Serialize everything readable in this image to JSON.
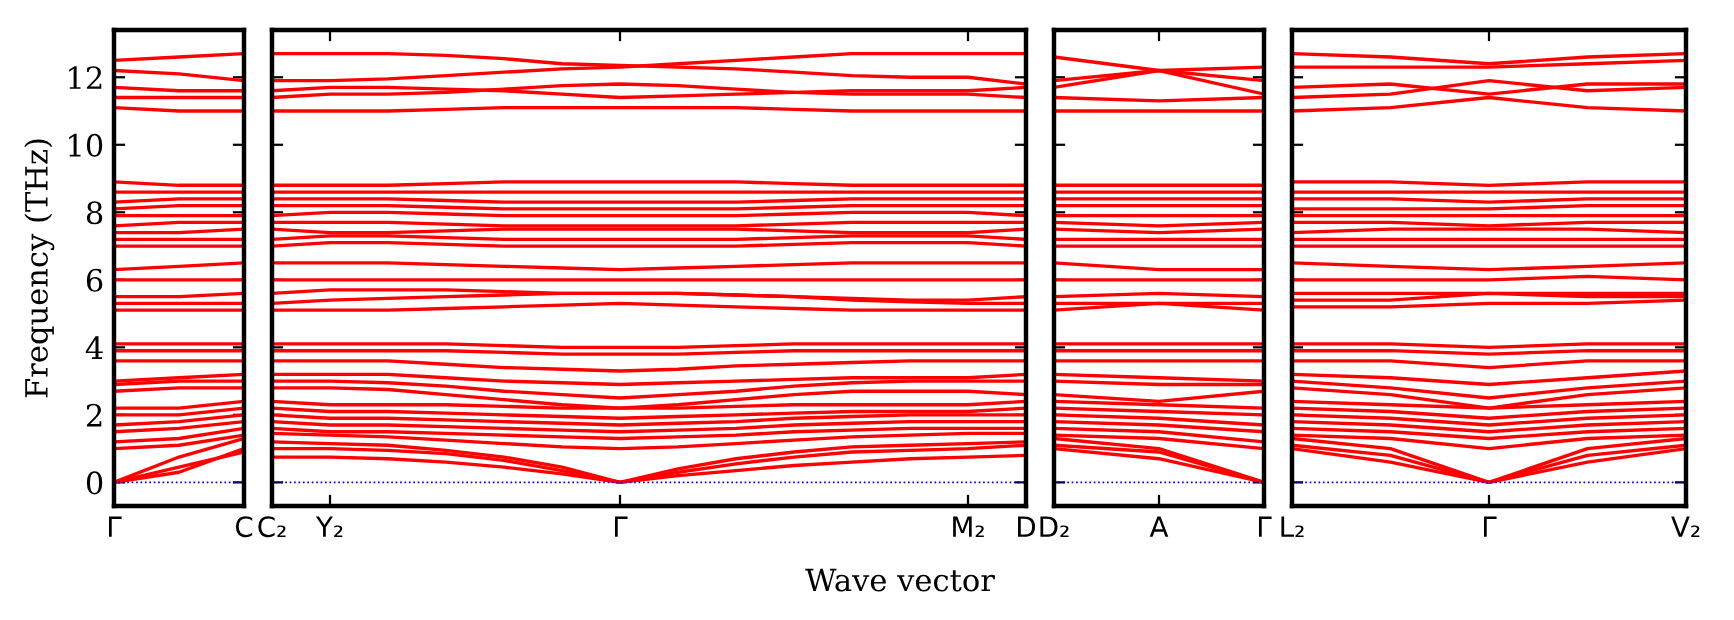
{
  "chart_data": [
    {
      "type": "line",
      "ylabel": "Frequency (THz)",
      "color": "#ff0000",
      "line_style": "solid",
      "categories": [
        "Γ",
        null,
        "C"
      ],
      "ylim": [
        -0.7,
        13.4
      ],
      "yticks": [
        0,
        2,
        4,
        6,
        8,
        10,
        12
      ],
      "ref_lines": [
        {
          "axis": "y",
          "value": 0,
          "color": "#0000ff",
          "line_style": "dotted"
        }
      ],
      "series": [
        {
          "values": [
            0,
            0.45,
            0.9
          ]
        },
        {
          "values": [
            0,
            0.75,
            1.3
          ]
        },
        {
          "values": [
            0,
            0.3,
            1.0
          ]
        },
        {
          "values": [
            1.0,
            1.1,
            1.4
          ]
        },
        {
          "values": [
            1.2,
            1.3,
            1.6
          ]
        },
        {
          "values": [
            1.5,
            1.6,
            1.8
          ]
        },
        {
          "values": [
            1.7,
            1.8,
            2.0
          ]
        },
        {
          "values": [
            2.0,
            2.0,
            2.2
          ]
        },
        {
          "values": [
            2.2,
            2.2,
            2.4
          ]
        },
        {
          "values": [
            2.7,
            2.8,
            2.8
          ]
        },
        {
          "values": [
            2.9,
            3.0,
            3.0
          ]
        },
        {
          "values": [
            3.0,
            3.1,
            3.2
          ]
        },
        {
          "values": [
            3.6,
            3.6,
            3.6
          ]
        },
        {
          "values": [
            3.9,
            3.9,
            3.9
          ]
        },
        {
          "values": [
            4.1,
            4.1,
            4.1
          ]
        },
        {
          "values": [
            5.1,
            5.1,
            5.1
          ]
        },
        {
          "values": [
            5.3,
            5.3,
            5.3
          ]
        },
        {
          "values": [
            5.5,
            5.5,
            5.6
          ]
        },
        {
          "values": [
            6.0,
            6.0,
            6.0
          ]
        },
        {
          "values": [
            6.3,
            6.4,
            6.5
          ]
        },
        {
          "values": [
            7.0,
            7.0,
            7.0
          ]
        },
        {
          "values": [
            7.2,
            7.2,
            7.2
          ]
        },
        {
          "values": [
            7.4,
            7.4,
            7.5
          ]
        },
        {
          "values": [
            7.6,
            7.7,
            7.7
          ]
        },
        {
          "values": [
            7.9,
            7.9,
            7.9
          ]
        },
        {
          "values": [
            8.1,
            8.2,
            8.2
          ]
        },
        {
          "values": [
            8.3,
            8.4,
            8.4
          ]
        },
        {
          "values": [
            8.6,
            8.6,
            8.6
          ]
        },
        {
          "values": [
            8.9,
            8.8,
            8.8
          ]
        },
        {
          "values": [
            11.1,
            11.0,
            11.0
          ]
        },
        {
          "values": [
            11.4,
            11.4,
            11.4
          ]
        },
        {
          "values": [
            11.7,
            11.6,
            11.6
          ]
        },
        {
          "values": [
            12.2,
            12.1,
            11.9
          ]
        },
        {
          "values": [
            12.5,
            12.6,
            12.7
          ]
        }
      ]
    },
    {
      "type": "line",
      "xlabel": "Wave vector",
      "tick_labels": "x",
      "color": "#ff0000",
      "line_style": "solid",
      "categories": [
        "C₂",
        "Y₂",
        null,
        null,
        null,
        null,
        "Γ",
        null,
        null,
        null,
        null,
        null,
        "M₂",
        "D"
      ],
      "ylim": [
        -0.7,
        13.4
      ],
      "yticks": [
        0,
        2,
        4,
        6,
        8,
        10,
        12
      ],
      "ref_lines": [
        {
          "axis": "y",
          "value": 0,
          "color": "#0000ff",
          "line_style": "dotted"
        }
      ],
      "series": [
        {
          "values": [
            0.75,
            0.75,
            0.7,
            0.6,
            0.45,
            0.25,
            0,
            0.2,
            0.35,
            0.5,
            0.6,
            0.7,
            0.75,
            0.8
          ]
        },
        {
          "values": [
            1.0,
            1.0,
            0.95,
            0.85,
            0.65,
            0.35,
            0,
            0.3,
            0.55,
            0.75,
            0.9,
            0.95,
            1.0,
            1.1
          ]
        },
        {
          "values": [
            1.2,
            1.15,
            1.1,
            0.95,
            0.75,
            0.45,
            0,
            0.4,
            0.7,
            0.9,
            1.05,
            1.1,
            1.15,
            1.2
          ]
        },
        {
          "values": [
            1.45,
            1.4,
            1.35,
            1.25,
            1.15,
            1.05,
            1.0,
            1.05,
            1.15,
            1.25,
            1.35,
            1.4,
            1.45,
            1.45
          ]
        },
        {
          "values": [
            1.6,
            1.5,
            1.5,
            1.45,
            1.4,
            1.35,
            1.3,
            1.35,
            1.4,
            1.5,
            1.55,
            1.6,
            1.6,
            1.6
          ]
        },
        {
          "values": [
            1.8,
            1.7,
            1.7,
            1.65,
            1.6,
            1.55,
            1.5,
            1.55,
            1.6,
            1.7,
            1.75,
            1.8,
            1.8,
            1.8
          ]
        },
        {
          "values": [
            2.0,
            1.9,
            1.9,
            1.85,
            1.8,
            1.75,
            1.7,
            1.75,
            1.8,
            1.9,
            1.95,
            2.0,
            2.0,
            2.0
          ]
        },
        {
          "values": [
            2.2,
            2.1,
            2.1,
            2.05,
            2.0,
            1.95,
            1.9,
            1.95,
            2.0,
            2.05,
            2.1,
            2.1,
            2.1,
            2.2
          ]
        },
        {
          "values": [
            2.4,
            2.3,
            2.3,
            2.3,
            2.25,
            2.2,
            2.2,
            2.2,
            2.25,
            2.3,
            2.3,
            2.3,
            2.3,
            2.4
          ]
        },
        {
          "values": [
            2.8,
            2.8,
            2.75,
            2.6,
            2.45,
            2.3,
            2.2,
            2.3,
            2.45,
            2.6,
            2.7,
            2.7,
            2.7,
            2.6
          ]
        },
        {
          "values": [
            3.0,
            3.0,
            2.95,
            2.85,
            2.7,
            2.6,
            2.5,
            2.6,
            2.7,
            2.85,
            2.95,
            3.0,
            3.0,
            3.0
          ]
        },
        {
          "values": [
            3.2,
            3.2,
            3.2,
            3.1,
            3.0,
            2.95,
            2.9,
            2.95,
            3.0,
            3.05,
            3.1,
            3.1,
            3.1,
            3.2
          ]
        },
        {
          "values": [
            3.6,
            3.6,
            3.6,
            3.5,
            3.4,
            3.35,
            3.3,
            3.35,
            3.45,
            3.5,
            3.55,
            3.6,
            3.6,
            3.6
          ]
        },
        {
          "values": [
            3.9,
            3.9,
            3.9,
            3.9,
            3.85,
            3.8,
            3.8,
            3.8,
            3.85,
            3.9,
            3.9,
            3.9,
            3.9,
            3.9
          ]
        },
        {
          "values": [
            4.1,
            4.1,
            4.1,
            4.1,
            4.05,
            4.0,
            4.0,
            4.0,
            4.05,
            4.1,
            4.1,
            4.1,
            4.1,
            4.1
          ]
        },
        {
          "values": [
            5.1,
            5.1,
            5.1,
            5.15,
            5.2,
            5.25,
            5.3,
            5.25,
            5.2,
            5.15,
            5.1,
            5.1,
            5.1,
            5.1
          ]
        },
        {
          "values": [
            5.3,
            5.4,
            5.45,
            5.5,
            5.55,
            5.6,
            5.6,
            5.6,
            5.55,
            5.5,
            5.4,
            5.35,
            5.3,
            5.3
          ]
        },
        {
          "values": [
            5.6,
            5.7,
            5.7,
            5.7,
            5.65,
            5.6,
            5.6,
            5.6,
            5.55,
            5.5,
            5.45,
            5.4,
            5.4,
            5.5
          ]
        },
        {
          "values": [
            6.0,
            6.0,
            6.0,
            6.0,
            6.0,
            6.0,
            6.0,
            6.0,
            6.0,
            6.0,
            6.0,
            6.0,
            6.0,
            6.0
          ]
        },
        {
          "values": [
            6.5,
            6.5,
            6.5,
            6.45,
            6.4,
            6.35,
            6.3,
            6.35,
            6.4,
            6.45,
            6.5,
            6.5,
            6.5,
            6.5
          ]
        },
        {
          "values": [
            7.0,
            7.1,
            7.1,
            7.05,
            7.0,
            7.0,
            7.0,
            7.0,
            7.0,
            7.05,
            7.1,
            7.1,
            7.1,
            7.0
          ]
        },
        {
          "values": [
            7.2,
            7.3,
            7.3,
            7.25,
            7.2,
            7.2,
            7.2,
            7.2,
            7.2,
            7.25,
            7.3,
            7.3,
            7.3,
            7.2
          ]
        },
        {
          "values": [
            7.5,
            7.4,
            7.4,
            7.45,
            7.5,
            7.5,
            7.5,
            7.5,
            7.5,
            7.45,
            7.4,
            7.4,
            7.4,
            7.5
          ]
        },
        {
          "values": [
            7.7,
            7.7,
            7.7,
            7.65,
            7.6,
            7.6,
            7.6,
            7.6,
            7.6,
            7.65,
            7.7,
            7.7,
            7.7,
            7.7
          ]
        },
        {
          "values": [
            7.9,
            8.0,
            8.0,
            7.95,
            7.9,
            7.9,
            7.9,
            7.9,
            7.9,
            7.95,
            8.0,
            8.0,
            8.0,
            7.9
          ]
        },
        {
          "values": [
            8.2,
            8.2,
            8.2,
            8.15,
            8.1,
            8.1,
            8.1,
            8.1,
            8.1,
            8.15,
            8.2,
            8.2,
            8.2,
            8.2
          ]
        },
        {
          "values": [
            8.4,
            8.4,
            8.4,
            8.35,
            8.3,
            8.3,
            8.3,
            8.3,
            8.3,
            8.35,
            8.4,
            8.4,
            8.4,
            8.4
          ]
        },
        {
          "values": [
            8.6,
            8.6,
            8.6,
            8.6,
            8.6,
            8.6,
            8.6,
            8.6,
            8.6,
            8.6,
            8.6,
            8.6,
            8.6,
            8.6
          ]
        },
        {
          "values": [
            8.8,
            8.8,
            8.8,
            8.85,
            8.9,
            8.9,
            8.9,
            8.9,
            8.9,
            8.85,
            8.8,
            8.8,
            8.8,
            8.8
          ]
        },
        {
          "values": [
            11.0,
            11.0,
            11.0,
            11.05,
            11.1,
            11.1,
            11.1,
            11.1,
            11.1,
            11.05,
            11.0,
            11.0,
            11.0,
            11.0
          ]
        },
        {
          "values": [
            11.4,
            11.5,
            11.5,
            11.55,
            11.65,
            11.75,
            11.8,
            11.75,
            11.65,
            11.55,
            11.5,
            11.5,
            11.5,
            11.4
          ]
        },
        {
          "values": [
            11.6,
            11.7,
            11.7,
            11.65,
            11.6,
            11.5,
            11.4,
            11.45,
            11.5,
            11.55,
            11.6,
            11.6,
            11.6,
            11.7
          ]
        },
        {
          "values": [
            11.9,
            11.9,
            11.95,
            12.05,
            12.15,
            12.25,
            12.3,
            12.4,
            12.5,
            12.6,
            12.7,
            12.7,
            12.7,
            12.7
          ]
        },
        {
          "values": [
            12.7,
            12.7,
            12.7,
            12.65,
            12.55,
            12.4,
            12.35,
            12.3,
            12.25,
            12.15,
            12.05,
            12.0,
            12.0,
            11.8
          ]
        }
      ]
    },
    {
      "type": "line",
      "tick_labels": "x",
      "color": "#ff0000",
      "line_style": "solid",
      "categories": [
        "D₂",
        "A",
        "Γ"
      ],
      "ylim": [
        -0.7,
        13.4
      ],
      "yticks": [
        0,
        2,
        4,
        6,
        8,
        10,
        12
      ],
      "ref_lines": [
        {
          "axis": "y",
          "value": 0,
          "color": "#0000ff",
          "line_style": "dotted"
        }
      ],
      "series": [
        {
          "values": [
            1.0,
            0.7,
            0
          ]
        },
        {
          "values": [
            1.1,
            0.9,
            0
          ]
        },
        {
          "values": [
            1.3,
            1.0,
            0
          ]
        },
        {
          "values": [
            1.4,
            1.3,
            1.0
          ]
        },
        {
          "values": [
            1.6,
            1.5,
            1.2
          ]
        },
        {
          "values": [
            1.8,
            1.7,
            1.5
          ]
        },
        {
          "values": [
            2.0,
            1.9,
            1.7
          ]
        },
        {
          "values": [
            2.2,
            2.1,
            2.0
          ]
        },
        {
          "values": [
            2.4,
            2.3,
            2.2
          ]
        },
        {
          "values": [
            2.6,
            2.4,
            2.7
          ]
        },
        {
          "values": [
            3.0,
            2.9,
            2.9
          ]
        },
        {
          "values": [
            3.2,
            3.1,
            3.0
          ]
        },
        {
          "values": [
            3.6,
            3.6,
            3.6
          ]
        },
        {
          "values": [
            3.9,
            3.9,
            3.9
          ]
        },
        {
          "values": [
            4.1,
            4.1,
            4.1
          ]
        },
        {
          "values": [
            5.1,
            5.3,
            5.1
          ]
        },
        {
          "values": [
            5.3,
            5.3,
            5.3
          ]
        },
        {
          "values": [
            5.5,
            5.6,
            5.5
          ]
        },
        {
          "values": [
            6.0,
            6.0,
            6.0
          ]
        },
        {
          "values": [
            6.5,
            6.3,
            6.3
          ]
        },
        {
          "values": [
            7.0,
            7.0,
            7.0
          ]
        },
        {
          "values": [
            7.2,
            7.2,
            7.2
          ]
        },
        {
          "values": [
            7.5,
            7.4,
            7.5
          ]
        },
        {
          "values": [
            7.7,
            7.6,
            7.7
          ]
        },
        {
          "values": [
            7.9,
            7.9,
            7.9
          ]
        },
        {
          "values": [
            8.2,
            8.2,
            8.2
          ]
        },
        {
          "values": [
            8.4,
            8.4,
            8.4
          ]
        },
        {
          "values": [
            8.6,
            8.6,
            8.6
          ]
        },
        {
          "values": [
            8.8,
            8.8,
            8.8
          ]
        },
        {
          "values": [
            11.0,
            11.0,
            11.0
          ]
        },
        {
          "values": [
            11.4,
            11.3,
            11.4
          ]
        },
        {
          "values": [
            11.7,
            12.2,
            11.5
          ]
        },
        {
          "values": [
            11.9,
            12.2,
            12.3
          ]
        },
        {
          "values": [
            12.6,
            12.2,
            11.9
          ]
        }
      ]
    },
    {
      "type": "line",
      "tick_labels": "x",
      "color": "#ff0000",
      "line_style": "solid",
      "categories": [
        "L₂",
        null,
        "Γ",
        null,
        "V₂"
      ],
      "ylim": [
        -0.7,
        13.4
      ],
      "yticks": [
        0,
        2,
        4,
        6,
        8,
        10,
        12
      ],
      "ref_lines": [
        {
          "axis": "y",
          "value": 0,
          "color": "#0000ff",
          "line_style": "dotted"
        }
      ],
      "series": [
        {
          "values": [
            1.0,
            0.6,
            0,
            0.6,
            1.0
          ]
        },
        {
          "values": [
            1.1,
            0.8,
            0,
            0.8,
            1.1
          ]
        },
        {
          "values": [
            1.3,
            1.0,
            0,
            1.0,
            1.3
          ]
        },
        {
          "values": [
            1.4,
            1.3,
            1.0,
            1.3,
            1.4
          ]
        },
        {
          "values": [
            1.6,
            1.5,
            1.3,
            1.5,
            1.6
          ]
        },
        {
          "values": [
            1.8,
            1.7,
            1.5,
            1.7,
            1.8
          ]
        },
        {
          "values": [
            2.0,
            1.9,
            1.7,
            1.9,
            2.0
          ]
        },
        {
          "values": [
            2.2,
            2.1,
            1.9,
            2.1,
            2.2
          ]
        },
        {
          "values": [
            2.4,
            2.3,
            2.2,
            2.3,
            2.4
          ]
        },
        {
          "values": [
            2.8,
            2.6,
            2.2,
            2.6,
            2.8
          ]
        },
        {
          "values": [
            3.0,
            2.8,
            2.5,
            2.8,
            3.0
          ]
        },
        {
          "values": [
            3.2,
            3.1,
            2.9,
            3.1,
            3.3
          ]
        },
        {
          "values": [
            3.6,
            3.6,
            3.4,
            3.6,
            3.6
          ]
        },
        {
          "values": [
            3.9,
            3.9,
            3.8,
            3.9,
            3.9
          ]
        },
        {
          "values": [
            4.1,
            4.1,
            4.0,
            4.1,
            4.1
          ]
        },
        {
          "values": [
            5.2,
            5.2,
            5.3,
            5.3,
            5.4
          ]
        },
        {
          "values": [
            5.4,
            5.4,
            5.6,
            5.5,
            5.5
          ]
        },
        {
          "values": [
            5.6,
            5.6,
            5.6,
            5.6,
            5.6
          ]
        },
        {
          "values": [
            6.0,
            6.0,
            6.0,
            6.1,
            6.0
          ]
        },
        {
          "values": [
            6.5,
            6.4,
            6.3,
            6.4,
            6.5
          ]
        },
        {
          "values": [
            7.0,
            7.0,
            7.0,
            7.0,
            7.0
          ]
        },
        {
          "values": [
            7.2,
            7.2,
            7.2,
            7.2,
            7.2
          ]
        },
        {
          "values": [
            7.4,
            7.5,
            7.5,
            7.5,
            7.4
          ]
        },
        {
          "values": [
            7.7,
            7.7,
            7.6,
            7.7,
            7.7
          ]
        },
        {
          "values": [
            7.9,
            7.9,
            7.9,
            7.9,
            7.9
          ]
        },
        {
          "values": [
            8.1,
            8.1,
            8.1,
            8.2,
            8.2
          ]
        },
        {
          "values": [
            8.4,
            8.4,
            8.3,
            8.4,
            8.4
          ]
        },
        {
          "values": [
            8.6,
            8.6,
            8.6,
            8.6,
            8.6
          ]
        },
        {
          "values": [
            8.9,
            8.9,
            8.8,
            8.9,
            8.9
          ]
        },
        {
          "values": [
            11.0,
            11.1,
            11.4,
            11.1,
            11.0
          ]
        },
        {
          "values": [
            11.4,
            11.5,
            11.9,
            11.6,
            11.7
          ]
        },
        {
          "values": [
            11.7,
            11.8,
            11.5,
            11.8,
            11.8
          ]
        },
        {
          "values": [
            12.3,
            12.3,
            12.3,
            12.4,
            12.5
          ]
        },
        {
          "values": [
            12.7,
            12.6,
            12.4,
            12.6,
            12.7
          ]
        }
      ]
    }
  ]
}
